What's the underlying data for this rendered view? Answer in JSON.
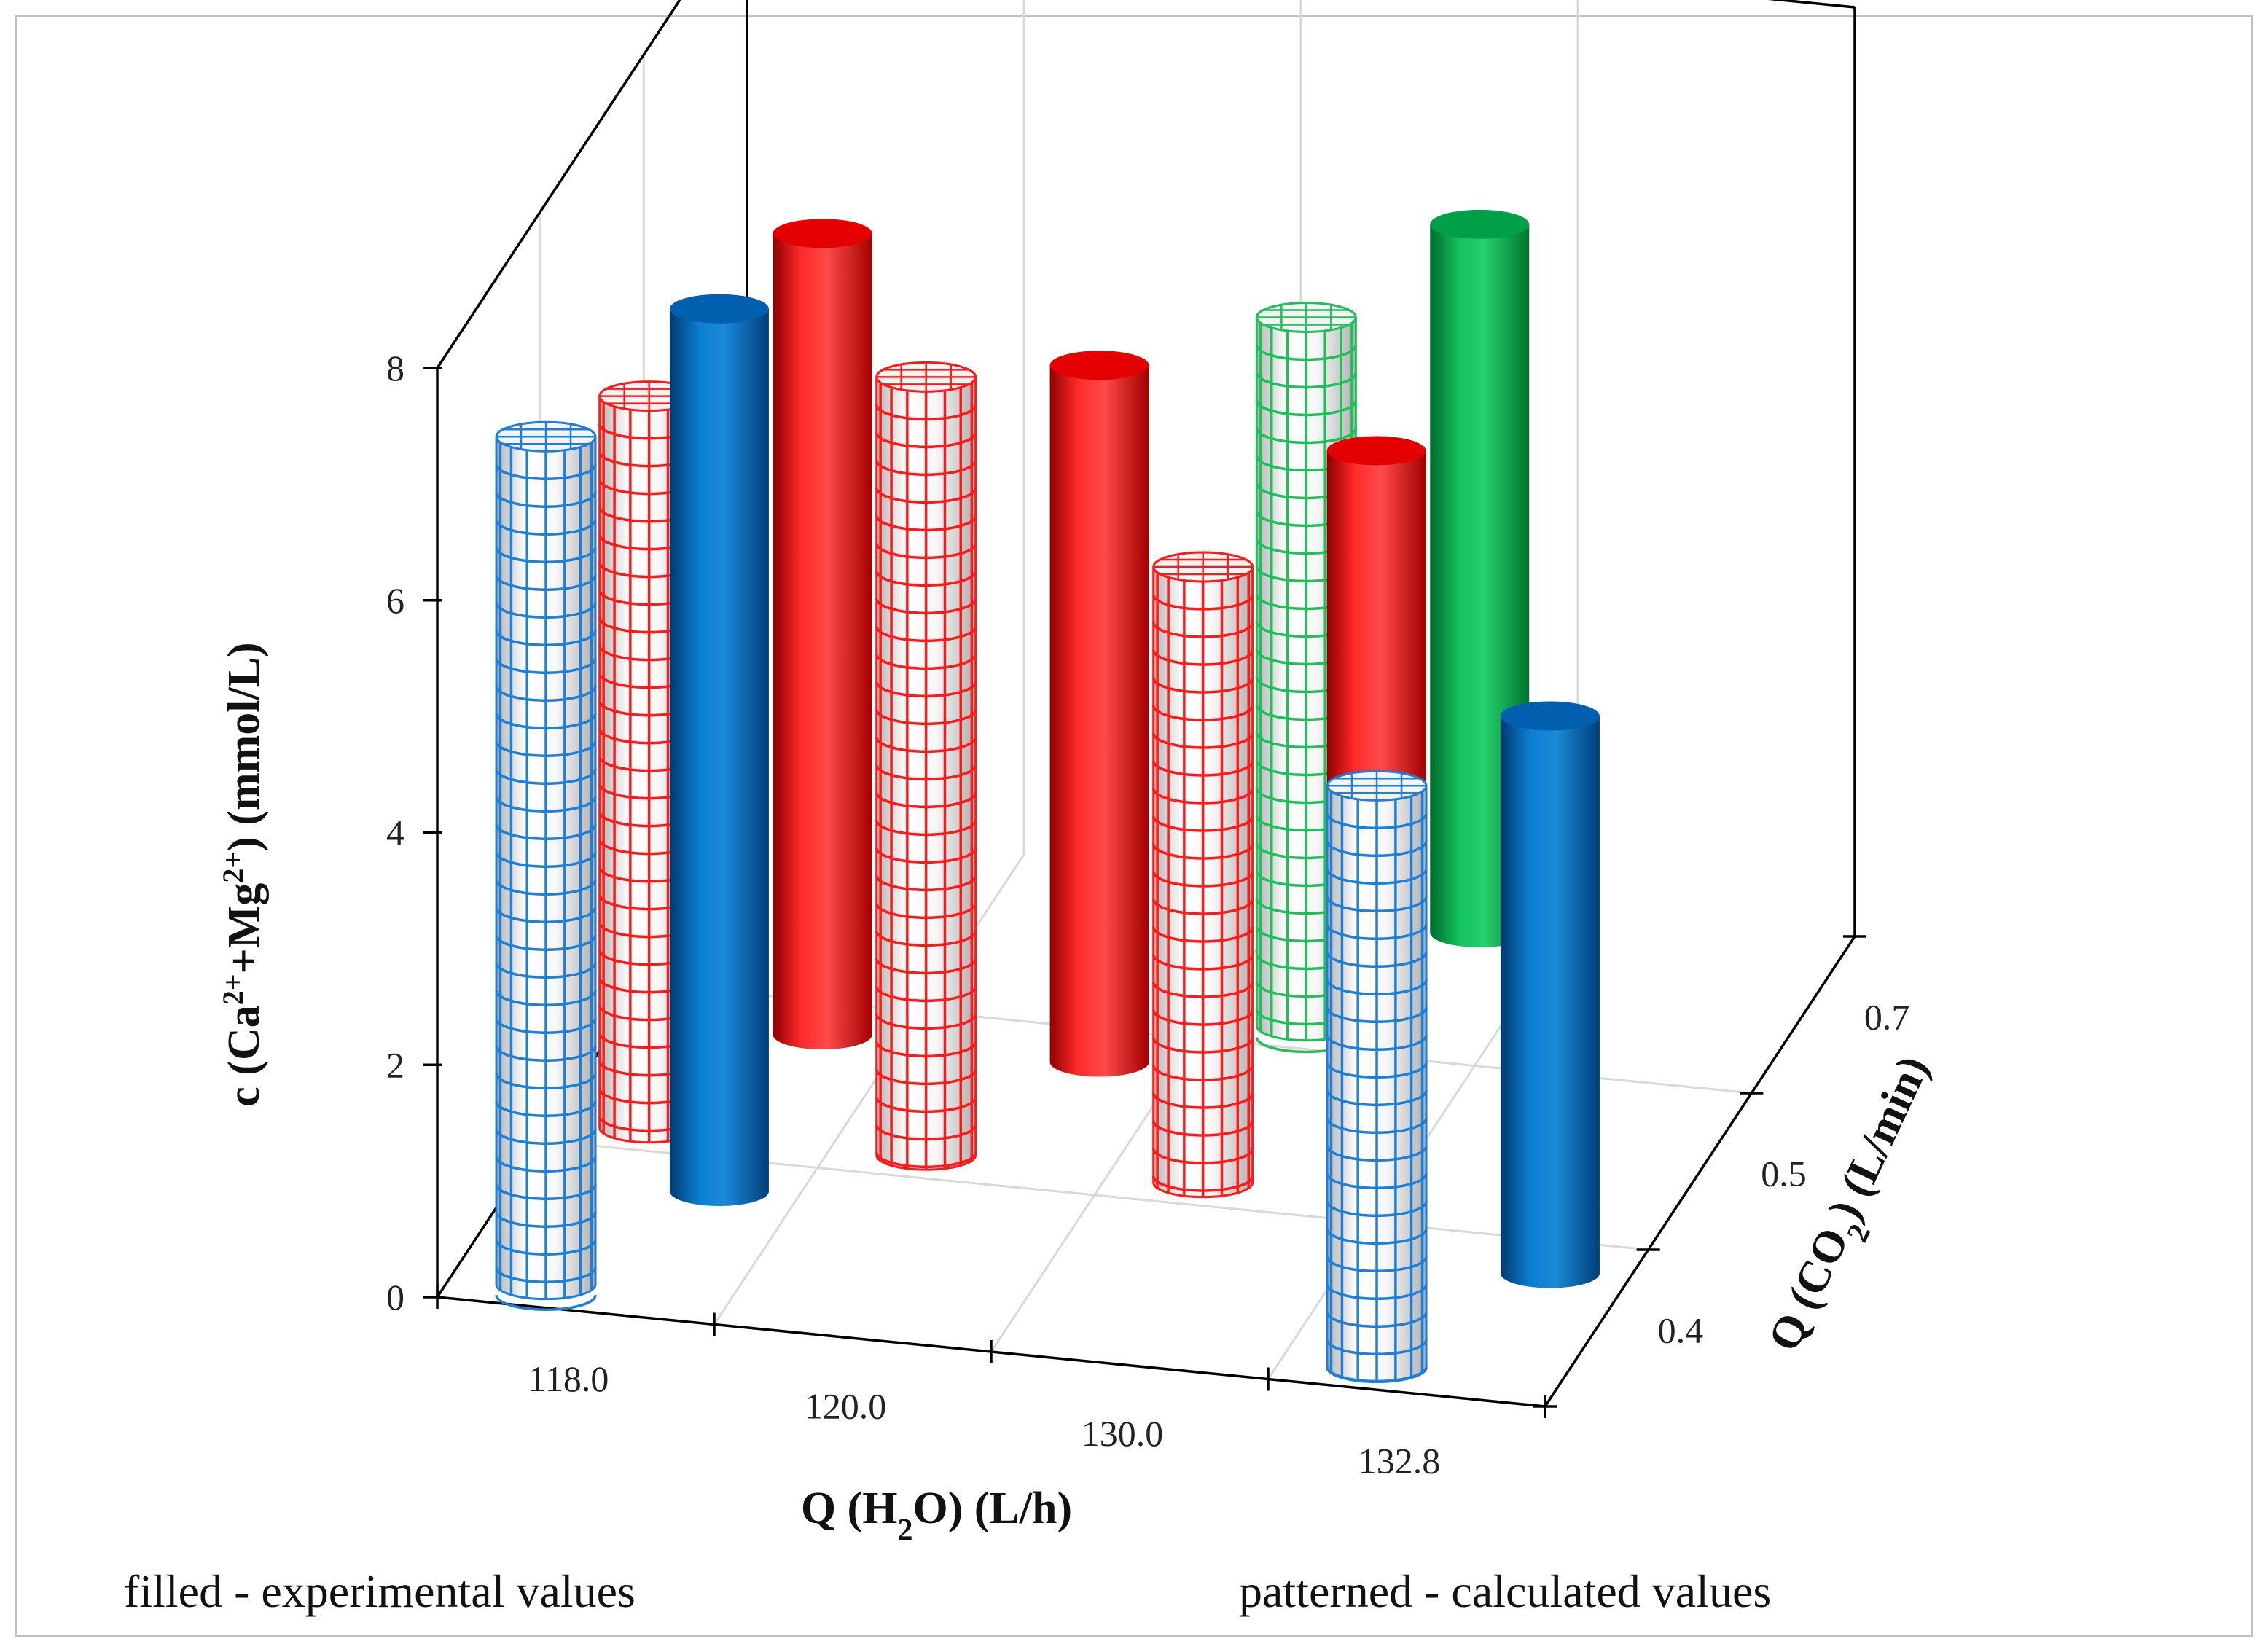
{
  "chart_data": {
    "type": "bar3d-cylinder",
    "x_axis": {
      "label_parts": [
        "Q (H",
        "2",
        "O) (L/h)"
      ],
      "categories": [
        "118.0",
        "120.0",
        "130.0",
        "132.8"
      ]
    },
    "depth_axis": {
      "label_parts": [
        "Q (CO",
        "2",
        ") (L/min)"
      ],
      "categories": [
        "0.4",
        "0.5",
        "0.7"
      ]
    },
    "z_axis": {
      "label_parts": [
        "c (Ca",
        "2+",
        "+Mg",
        "2+",
        ") (mmol/L)"
      ],
      "ticks": [
        "0",
        "2",
        "4",
        "6",
        "8"
      ],
      "range": [
        0,
        8
      ]
    },
    "notes": {
      "filled": "filled - experimental values",
      "patterned": "patterned - calculated values"
    },
    "colors": {
      "red": "#ff0000",
      "blue": "#0070c0",
      "green": "#00b050",
      "frame": "#000000",
      "grid": "#d9d9d9"
    },
    "bars": [
      {
        "x": "118.0",
        "depth": "0.5",
        "value": 6.9,
        "kind": "experimental",
        "color": "red"
      },
      {
        "x": "118.0",
        "depth": "0.5",
        "value": 6.3,
        "kind": "calculated",
        "color": "red"
      },
      {
        "x": "118.0",
        "depth": "0.4",
        "value": 7.6,
        "kind": "experimental",
        "color": "blue"
      },
      {
        "x": "118.0",
        "depth": "0.4",
        "value": 7.3,
        "kind": "calculated",
        "color": "blue"
      },
      {
        "x": "120.0",
        "depth": "0.5",
        "value": 6.0,
        "kind": "experimental",
        "color": "red"
      },
      {
        "x": "120.0",
        "depth": "0.5",
        "value": 6.7,
        "kind": "calculated",
        "color": "red"
      },
      {
        "x": "130.0",
        "depth": "0.7",
        "value": 6.1,
        "kind": "experimental",
        "color": "green"
      },
      {
        "x": "130.0",
        "depth": "0.7",
        "value": 6.1,
        "kind": "calculated",
        "color": "green"
      },
      {
        "x": "130.0",
        "depth": "0.5",
        "value": 5.5,
        "kind": "experimental",
        "color": "red"
      },
      {
        "x": "130.0",
        "depth": "0.5",
        "value": 5.3,
        "kind": "calculated",
        "color": "red"
      },
      {
        "x": "132.8",
        "depth": "0.4",
        "value": 4.8,
        "kind": "experimental",
        "color": "blue"
      },
      {
        "x": "132.8",
        "depth": "0.4",
        "value": 5.0,
        "kind": "calculated",
        "color": "blue"
      }
    ]
  }
}
